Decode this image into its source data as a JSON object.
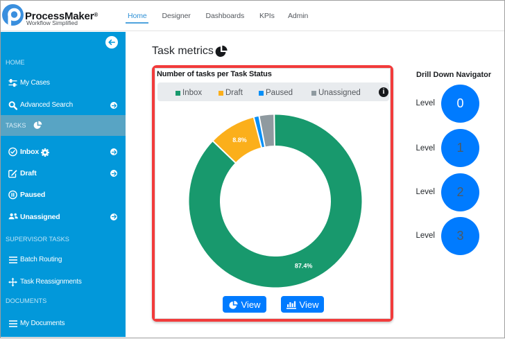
{
  "header": {
    "brand": {
      "name": "ProcessMaker",
      "registered": "®",
      "tagline": "Workflow Simplified"
    },
    "nav": [
      {
        "label": "Home",
        "active": true
      },
      {
        "label": "Designer",
        "active": false
      },
      {
        "label": "Dashboards",
        "active": false
      },
      {
        "label": "KPIs",
        "active": false
      },
      {
        "label": "Admin",
        "active": false
      }
    ]
  },
  "sidebar": {
    "sections": [
      {
        "label": "HOME",
        "items": [
          {
            "label": "My Cases",
            "icon": "sliders-icon",
            "bold": false,
            "arrow": false
          },
          {
            "label": "Advanced Search",
            "icon": "search-icon",
            "bold": false,
            "arrow": true
          }
        ]
      },
      {
        "label": "TASKS",
        "icon": "pie-chart-icon",
        "highlighted": true,
        "items": [
          {
            "label": "Inbox",
            "icon": "check-circle-icon",
            "gear": true,
            "bold": true,
            "arrow": true
          },
          {
            "label": "Draft",
            "icon": "edit-icon",
            "bold": true,
            "arrow": true
          },
          {
            "label": "Paused",
            "icon": "pause-circle-icon",
            "bold": true,
            "arrow": false
          },
          {
            "label": "Unassigned",
            "icon": "users-icon",
            "bold": true,
            "arrow": true
          }
        ]
      },
      {
        "label": "SUPERVISOR TASKS",
        "items": [
          {
            "label": "Batch Routing",
            "icon": "list-icon",
            "bold": false,
            "arrow": false
          },
          {
            "label": "Task Reassignments",
            "icon": "move-icon",
            "bold": false,
            "arrow": false
          }
        ]
      },
      {
        "label": "DOCUMENTS",
        "items": [
          {
            "label": "My Documents",
            "icon": "list-icon",
            "bold": false,
            "arrow": false
          }
        ]
      }
    ]
  },
  "main": {
    "title": "Task metrics",
    "card": {
      "title": "Number of tasks per Task Status",
      "buttons": [
        {
          "label": "View",
          "icon": "pie-chart-icon"
        },
        {
          "label": "View",
          "icon": "bar-chart-icon"
        }
      ]
    }
  },
  "chart_data": {
    "type": "doughnut",
    "title": "Number of tasks per Task Status",
    "labels": [
      "Inbox",
      "Draft",
      "Paused",
      "Unassigned"
    ],
    "values": [
      87.4,
      8.8,
      1.0,
      2.8
    ],
    "colors": [
      "#18996D",
      "#FBAF1B",
      "#068FF7",
      "#8F9AA0"
    ],
    "data_labels": [
      "87.4%",
      "8.8%",
      "",
      ""
    ],
    "legend_position": "top",
    "cutout_percent": 64,
    "start_angle_deg": -0.8,
    "direction": "clockwise"
  },
  "drilldown": {
    "title": "Drill Down Navigator",
    "row_label": "Level",
    "levels": [
      {
        "value": "0",
        "active": true
      },
      {
        "value": "1",
        "active": false
      },
      {
        "value": "2",
        "active": false
      },
      {
        "value": "3",
        "active": false
      }
    ]
  },
  "colors": {
    "sidebar_bg": "#0298DA",
    "sidebar_highlight": "#58A4C4",
    "card_border": "#F23B3B",
    "button_primary": "#007BFF",
    "legend_bar_bg": "#E8EBEE",
    "nav_active": "#2E90D6",
    "logo_blue": "#3A8FDE"
  }
}
